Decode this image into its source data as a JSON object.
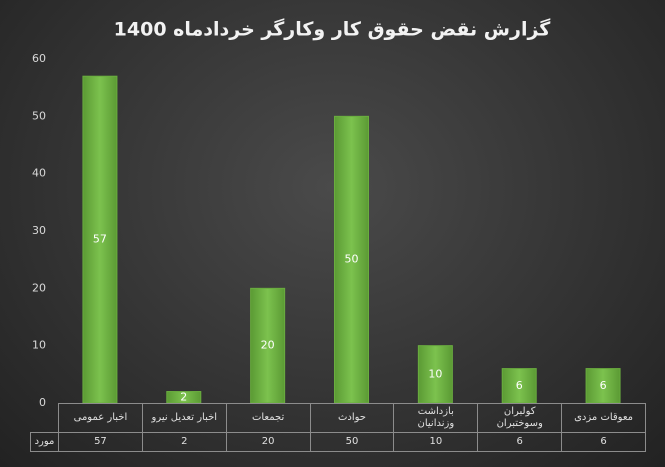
{
  "chart_data": {
    "type": "bar",
    "title": "گزارش نقض حقوق کار وکارگر خردادماه 1400",
    "categories": [
      "اخبار عمومی",
      "اخبار تعدیل نیرو",
      "تجمعات",
      "حوادث",
      "بازداشت وزندانیان",
      "کولبران وسوختبران",
      "معوقات مزدی"
    ],
    "series": [
      {
        "name": "مورد",
        "color": "#6aad3f",
        "values": [
          57,
          2,
          20,
          50,
          10,
          6,
          6
        ]
      }
    ],
    "ylim": [
      0,
      60
    ],
    "yticks": [
      0,
      10,
      20,
      30,
      40,
      50,
      60
    ],
    "grid": false
  }
}
